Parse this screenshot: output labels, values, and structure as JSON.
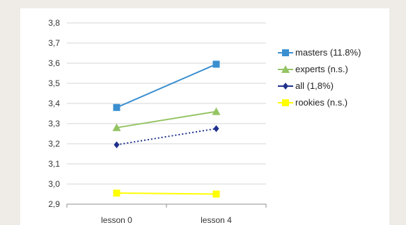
{
  "chart_data": {
    "type": "line",
    "categories": [
      "lesson 0",
      "lesson 4"
    ],
    "ylim": [
      2.9,
      3.8
    ],
    "yticks": [
      "2,9",
      "3,0",
      "3,1",
      "3,2",
      "3,3",
      "3,4",
      "3,5",
      "3,6",
      "3,7",
      "3,8"
    ],
    "grid": "horizontal",
    "legend_position": "right",
    "series": [
      {
        "name": "masters (11.8%)",
        "values": [
          3.38,
          3.595
        ],
        "color": "#3a8fd0",
        "marker": "square",
        "dash": "solid"
      },
      {
        "name": "experts (n.s.)",
        "values": [
          3.28,
          3.36
        ],
        "color": "#94c463",
        "marker": "triangle",
        "dash": "solid"
      },
      {
        "name": "all (1,8%)",
        "values": [
          3.195,
          3.275
        ],
        "color": "#1f2f8c",
        "marker": "diamond",
        "dash": "dotted"
      },
      {
        "name": "rookies (n.s.)",
        "values": [
          2.955,
          2.95
        ],
        "color": "#ffff00",
        "marker": "square",
        "dash": "solid"
      }
    ]
  }
}
